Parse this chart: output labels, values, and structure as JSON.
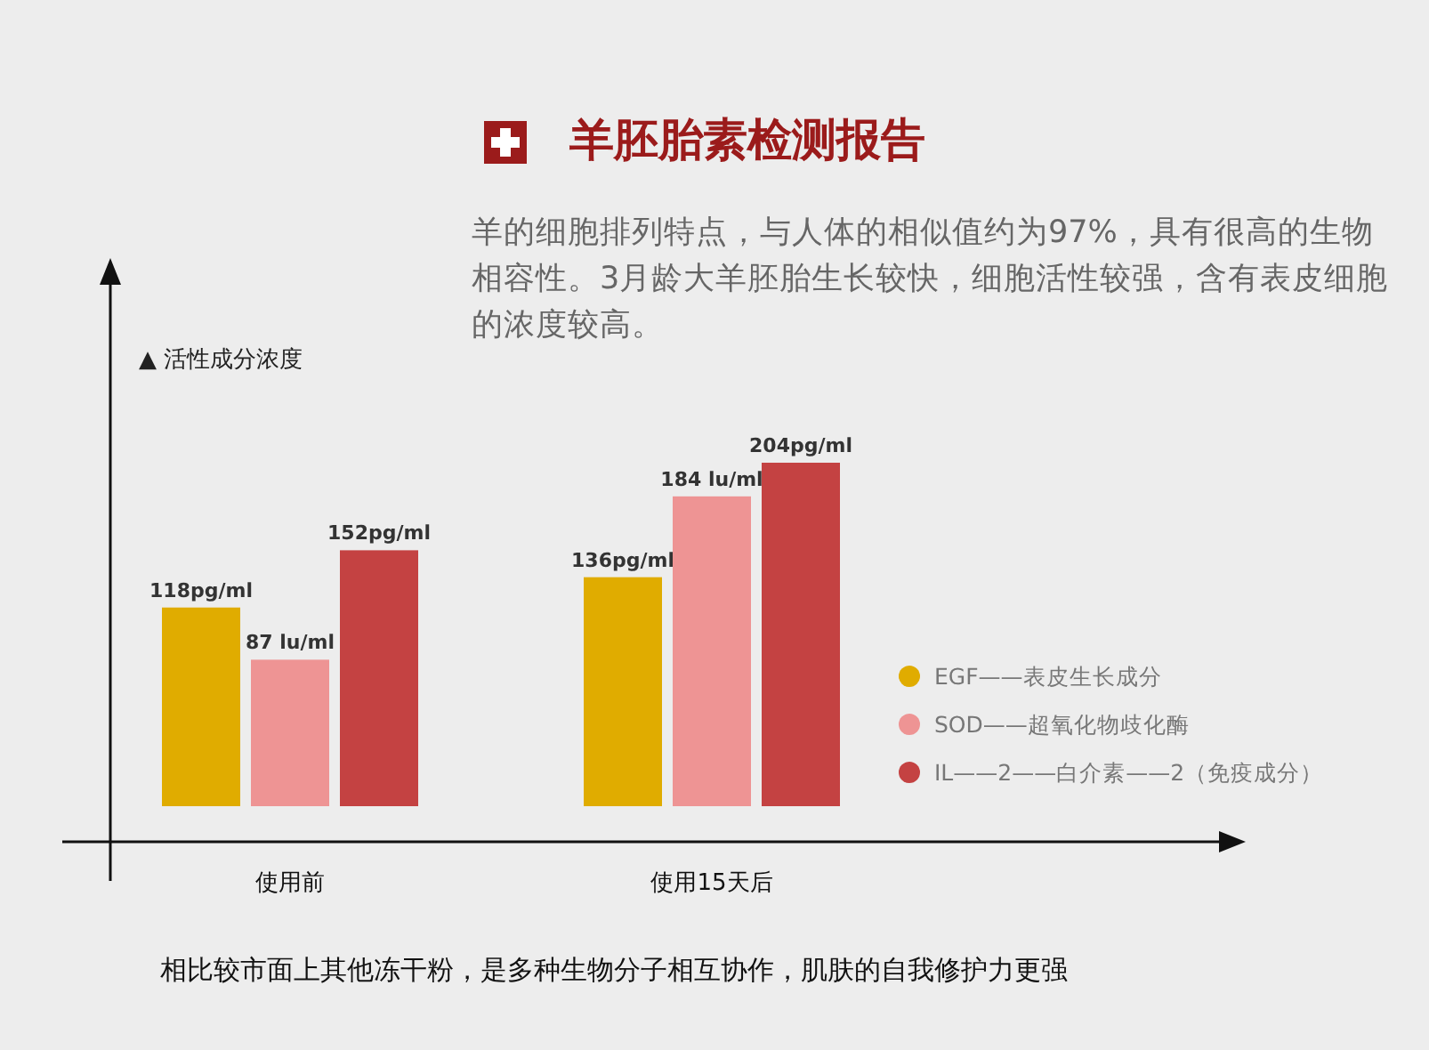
{
  "chart_data": {
    "type": "bar",
    "title": "羊胚胎素检测报告",
    "subtitle": "羊的细胞排列特点，与人体的相似值约为97%，具有很高的生物相容性。3月龄大羊胚胎生长较快，细胞活性较强，含有表皮细胞的浓度较高。",
    "ylabel": "▲ 活性成分浓度",
    "categories": [
      "使用前",
      "使用15天后"
    ],
    "series": [
      {
        "name": "EGF——表皮生长成分",
        "color": "#e0ac00",
        "values": [
          118,
          136
        ],
        "value_labels": [
          "118pg/ml",
          "136pg/ml"
        ]
      },
      {
        "name": "SOD——超氧化物歧化酶",
        "color": "#ee9494",
        "values": [
          87,
          184
        ],
        "value_labels": [
          "87 lu/ml",
          "184 lu/ml"
        ]
      },
      {
        "name": "IL——2——白介素——2（免疫成分）",
        "color": "#c44242",
        "values": [
          152,
          204
        ],
        "value_labels": [
          "152pg/ml",
          "204pg/ml"
        ]
      }
    ],
    "legend": "right",
    "annotations": [
      "相比较市面上其他冻干粉，是多种生物分子相互协作，肌肤的自我修护力更强"
    ]
  }
}
